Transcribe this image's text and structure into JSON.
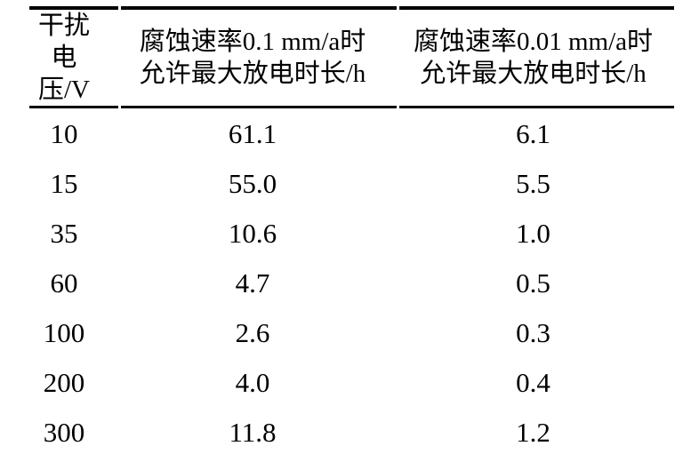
{
  "table": {
    "headers": [
      {
        "line1": "干扰电",
        "line2": "压/V"
      },
      {
        "line1": "腐蚀速率0.1 mm/a时",
        "line2": "允许最大放电时长/h"
      },
      {
        "line1": "腐蚀速率0.01 mm/a时",
        "line2": "允许最大放电时长/h"
      }
    ],
    "rows": [
      [
        "10",
        "61.1",
        "6.1"
      ],
      [
        "15",
        "55.0",
        "5.5"
      ],
      [
        "35",
        "10.6",
        "1.0"
      ],
      [
        "60",
        "4.7",
        "0.5"
      ],
      [
        "100",
        "2.6",
        "0.3"
      ],
      [
        "200",
        "4.0",
        "0.4"
      ],
      [
        "300",
        "11.8",
        "1.2"
      ]
    ],
    "colors": {
      "text": "#000000",
      "background": "#ffffff",
      "rule": "#000000"
    }
  }
}
